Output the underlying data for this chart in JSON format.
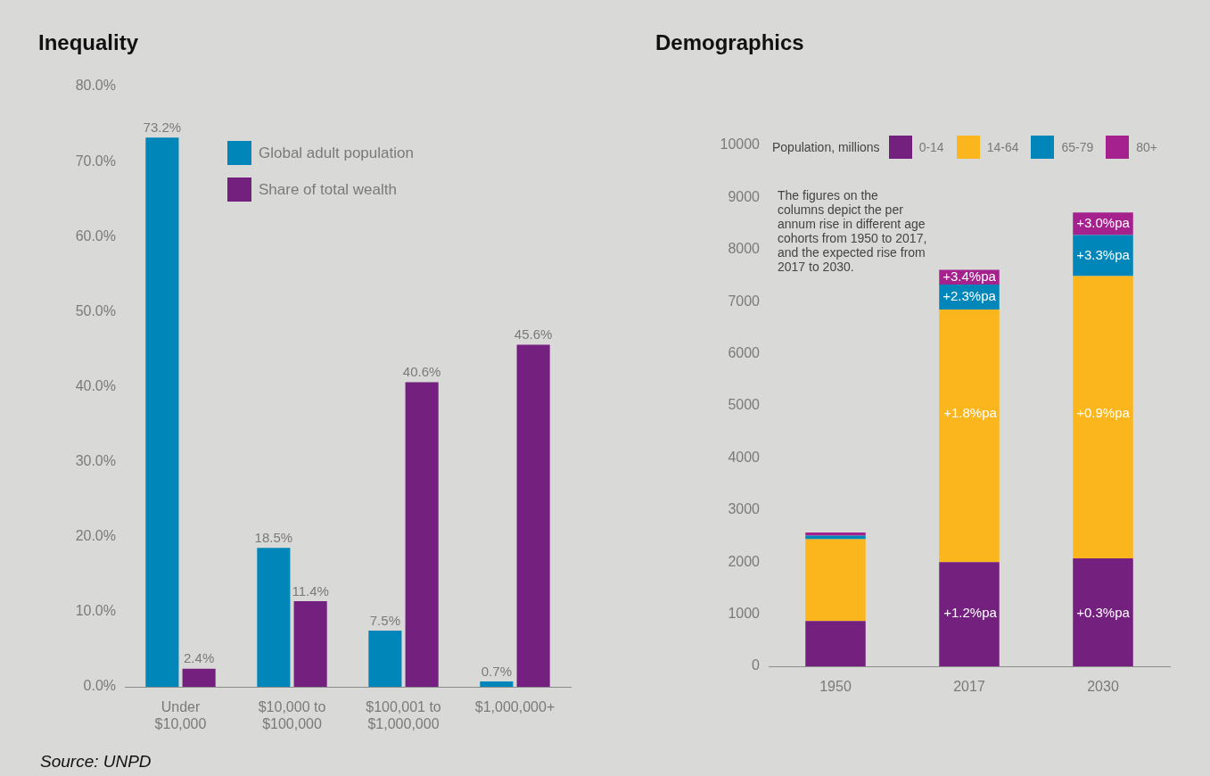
{
  "chart_data": [
    {
      "type": "bar",
      "title": "Inequality",
      "categories": [
        "Under $10,000",
        "$10,000 to $100,000",
        "$100,001 to $1,000,000",
        "$1,000,000+"
      ],
      "series": [
        {
          "name": "Global adult population",
          "color": "#0086b9",
          "values": [
            73.2,
            18.5,
            7.5,
            0.7
          ],
          "value_labels": [
            "73.2%",
            "18.5%",
            "7.5%",
            "0.7%"
          ]
        },
        {
          "name": "Share of total wealth",
          "color": "#74207f",
          "values": [
            2.4,
            11.4,
            40.6,
            45.6
          ],
          "value_labels": [
            "2.4%",
            "11.4%",
            "40.6%",
            "45.6%"
          ]
        }
      ],
      "ylim": [
        0,
        80
      ],
      "yticks": [
        {
          "value": 0,
          "label": "0.0%"
        },
        {
          "value": 10,
          "label": "10.0%"
        },
        {
          "value": 20,
          "label": "20.0%"
        },
        {
          "value": 30,
          "label": "30.0%"
        },
        {
          "value": 40,
          "label": "40.0%"
        },
        {
          "value": 50,
          "label": "50.0%"
        },
        {
          "value": 60,
          "label": "60.0%"
        },
        {
          "value": 70,
          "label": "70.0%"
        },
        {
          "value": 80,
          "label": "80.0%"
        }
      ],
      "grid": false,
      "legend": "top",
      "annotations": [
        "Source: UNPD"
      ]
    },
    {
      "type": "bar",
      "title": "Demographics",
      "stacked": true,
      "categories": [
        "1950",
        "2017",
        "2030"
      ],
      "legend_title": "Population, millions",
      "series": [
        {
          "name": "0-14",
          "color": "#74207f",
          "values": [
            870,
            2000,
            2070
          ]
        },
        {
          "name": "14-64",
          "color": "#fbb61d",
          "values": [
            1570,
            4850,
            5420
          ]
        },
        {
          "name": "65-79",
          "color": "#0086b9",
          "values": [
            70,
            480,
            790
          ]
        },
        {
          "name": "80+",
          "color": "#a5228e",
          "values": [
            60,
            280,
            430
          ]
        }
      ],
      "ylim": [
        0,
        10000
      ],
      "yticks": [
        0,
        1000,
        2000,
        3000,
        4000,
        5000,
        6000,
        7000,
        8000,
        9000,
        10000
      ],
      "grid": false,
      "legend": "top",
      "annotations": [
        "The figures on the columns depict the per annum rise in different age cohorts from 1950 to 2017, and the expected rise from 2017 to 2030.",
        "+1.2%pa",
        "+1.8%pa",
        "+0.3%pa",
        "+0.9%pa",
        {
          "text": "+2.3%pa",
          "x": "2017",
          "y": 7330
        },
        {
          "text": "+3.4%pa",
          "x": "2017",
          "y": 7610
        },
        {
          "text": "+3.3%pa",
          "x": "2030",
          "y": 8280
        },
        {
          "text": "+3.0%pa",
          "x": "2030",
          "y": 8710
        }
      ]
    }
  ]
}
